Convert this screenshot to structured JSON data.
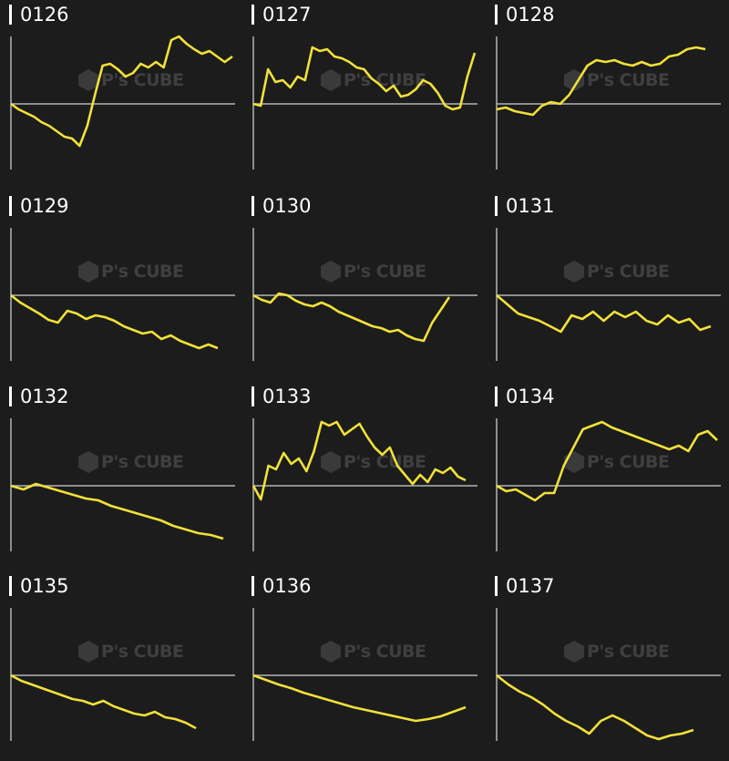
{
  "watermark": {
    "logo_text": "P's CUBE"
  },
  "colors": {
    "background": "#1c1c1c",
    "line": "#f1e13a",
    "axis": "#b4b4b4",
    "title": "#ffffff"
  },
  "chart_data": [
    {
      "type": "line",
      "title": "0126",
      "values": [
        0,
        -6,
        -10,
        -14,
        -20,
        -24,
        -30,
        -36,
        -38,
        -46,
        -24,
        10,
        42,
        44,
        38,
        30,
        34,
        44,
        40,
        46,
        40,
        70,
        74,
        66,
        60,
        55,
        58,
        52,
        46,
        52
      ]
    },
    {
      "type": "line",
      "title": "0127",
      "values": [
        0,
        -2,
        38,
        24,
        26,
        18,
        30,
        26,
        62,
        58,
        60,
        52,
        50,
        46,
        40,
        38,
        28,
        22,
        14,
        20,
        8,
        10,
        16,
        26,
        22,
        12,
        -2,
        -6,
        -4,
        30,
        56
      ]
    },
    {
      "type": "line",
      "title": "0128",
      "values": [
        -6,
        -4,
        -8,
        -10,
        -12,
        -2,
        2,
        0,
        10,
        26,
        42,
        48,
        46,
        48,
        44,
        42,
        46,
        42,
        44,
        52,
        54,
        60,
        62,
        60
      ]
    },
    {
      "type": "line",
      "title": "0129",
      "values": [
        0,
        -8,
        -14,
        -20,
        -27,
        -30,
        -17,
        -20,
        -26,
        -22,
        -24,
        -28,
        -34,
        -38,
        -42,
        -40,
        -48,
        -44,
        -50,
        -54,
        -58,
        -54,
        -58
      ]
    },
    {
      "type": "line",
      "title": "0130",
      "values": [
        0,
        -5,
        -8,
        2,
        0,
        -6,
        -10,
        -12,
        -8,
        -12,
        -18,
        -22,
        -26,
        -30,
        -34,
        -36,
        -40,
        -38,
        -44,
        -48,
        -50,
        -30,
        -16,
        -2
      ]
    },
    {
      "type": "line",
      "title": "0131",
      "values": [
        0,
        -10,
        -20,
        -24,
        -28,
        -34,
        -40,
        -22,
        -26,
        -18,
        -28,
        -18,
        -24,
        -18,
        -28,
        -32,
        -22,
        -30,
        -26,
        -38,
        -34
      ]
    },
    {
      "type": "line",
      "title": "0132",
      "values": [
        0,
        -4,
        2,
        -2,
        -6,
        -10,
        -14,
        -16,
        -22,
        -26,
        -30,
        -34,
        -38,
        -44,
        -48,
        -52,
        -54,
        -58
      ]
    },
    {
      "type": "line",
      "title": "0133",
      "values": [
        0,
        -15,
        22,
        18,
        36,
        24,
        30,
        16,
        38,
        70,
        66,
        70,
        56,
        62,
        68,
        54,
        42,
        34,
        42,
        22,
        12,
        2,
        12,
        4,
        18,
        14,
        20,
        10,
        6
      ]
    },
    {
      "type": "line",
      "title": "0134",
      "values": [
        0,
        -6,
        -4,
        -10,
        -16,
        -8,
        -8,
        22,
        42,
        62,
        66,
        70,
        64,
        60,
        56,
        52,
        48,
        44,
        40,
        44,
        38,
        56,
        60,
        50
      ]
    },
    {
      "type": "line",
      "title": "0135",
      "values": [
        0,
        -6,
        -10,
        -14,
        -18,
        -22,
        -26,
        -28,
        -32,
        -28,
        -34,
        -38,
        -42,
        -44,
        -40,
        -46,
        -48,
        -52,
        -58
      ]
    },
    {
      "type": "line",
      "title": "0136",
      "values": [
        0,
        -5,
        -10,
        -14,
        -19,
        -23,
        -27,
        -31,
        -35,
        -38,
        -41,
        -44,
        -47,
        -50,
        -48,
        -45,
        -40,
        -35
      ]
    },
    {
      "type": "line",
      "title": "0137",
      "values": [
        0,
        -10,
        -18,
        -24,
        -32,
        -42,
        -50,
        -56,
        -64,
        -50,
        -44,
        -50,
        -58,
        -66,
        -70,
        -66,
        -64,
        -60
      ]
    }
  ]
}
